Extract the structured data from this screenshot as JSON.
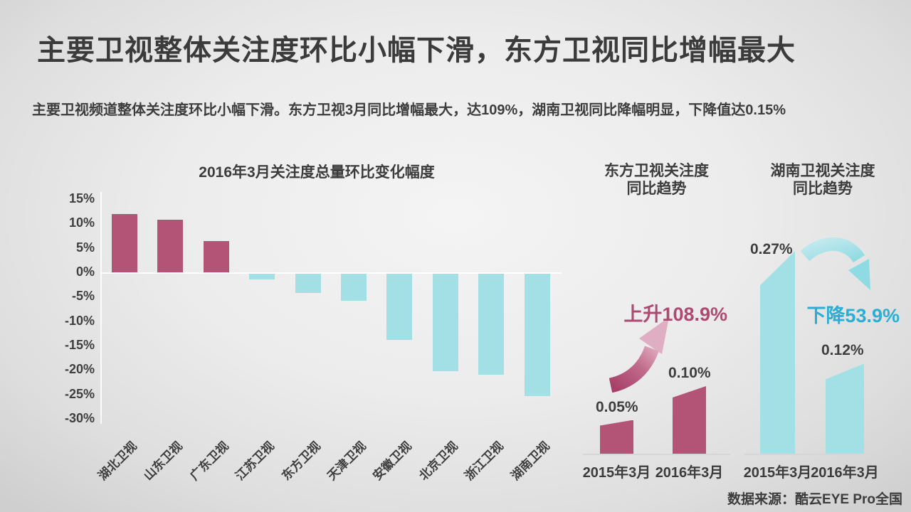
{
  "page": {
    "title": "主要卫视整体关注度环比小幅下滑，东方卫视同比增幅最大",
    "subtitle": "主要卫视频道整体关注度环比小幅下滑。东方卫视3月同比增幅最大，达109%，湖南卫视同比降幅明显，下降值达0.15%",
    "source": "数据来源：酷云EYE Pro全国"
  },
  "colors": {
    "positive_bar": "#b35476",
    "negative_bar": "#a3e0e6",
    "rise_text": "#ae4a70",
    "fall_text": "#2aaed4",
    "text": "#3c3c3c"
  },
  "chart_data": [
    {
      "type": "bar",
      "title": "2016年3月关注度总量环比变化幅度",
      "categories": [
        "湖北卫视",
        "山东卫视",
        "广东卫视",
        "江苏卫视",
        "东方卫视",
        "天津卫视",
        "安徽卫视",
        "北京卫视",
        "浙江卫视",
        "湖南卫视"
      ],
      "values": [
        12,
        10.8,
        6.4,
        -1.2,
        -4,
        -5.6,
        -13.5,
        -20,
        -20.7,
        -25
      ],
      "unit": "%",
      "ylim": [
        -30,
        15
      ],
      "ytick_step": 5,
      "positive_color": "#b35476",
      "negative_color": "#a3e0e6",
      "grid": false,
      "legend": "none"
    },
    {
      "type": "bar",
      "title_lines": [
        "东方卫视关注度",
        "同比趋势"
      ],
      "categories": [
        "2015年3月",
        "2016年3月"
      ],
      "values": [
        0.05,
        0.1
      ],
      "value_labels": [
        "0.05%",
        "0.10%"
      ],
      "unit": "%",
      "change_label": "上升108.9%",
      "trend": "up",
      "color": "#b35476"
    },
    {
      "type": "bar",
      "title_lines": [
        "湖南卫视关注度",
        "同比趋势"
      ],
      "categories": [
        "2015年3月",
        "2016年3月"
      ],
      "values": [
        0.27,
        0.12
      ],
      "value_labels": [
        "0.27%",
        "0.12%"
      ],
      "unit": "%",
      "change_label": "下降53.9%",
      "trend": "down",
      "color": "#a3e0e6"
    }
  ]
}
